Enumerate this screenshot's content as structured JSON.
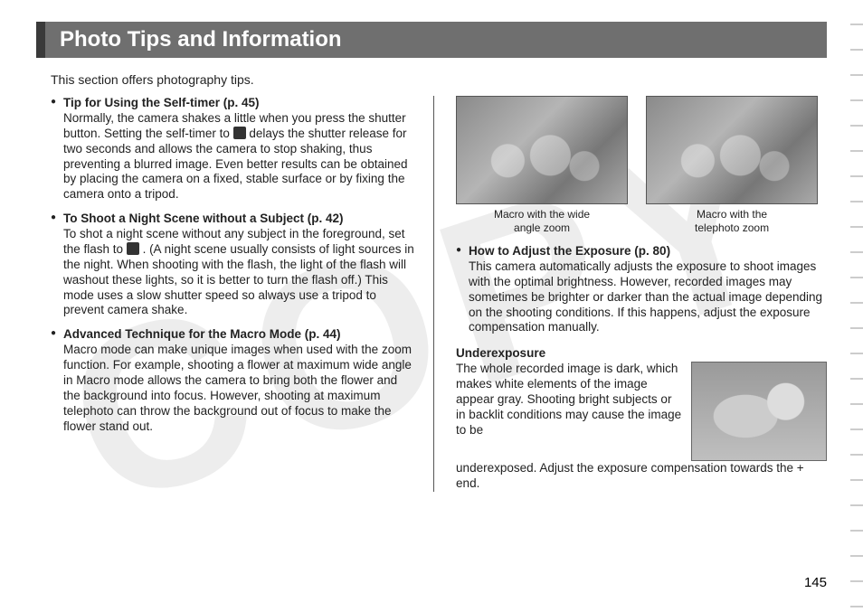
{
  "watermark_text": "COPY",
  "title": "Photo Tips and Information",
  "intro": "This section offers photography tips.",
  "left_tips": [
    {
      "title": "Tip for Using the Self-timer (p. 45)",
      "body_before_icon": "Normally, the camera shakes a little when you press the shutter button.\nSetting the self-timer to ",
      "body_after_icon": " delays the shutter release for two seconds and allows the camera to stop shaking, thus preventing a blurred image. Even better results can be obtained by placing the camera on a fixed, stable surface or by fixing the camera onto a tripod.",
      "has_icon": true
    },
    {
      "title": "To Shoot a Night Scene without a Subject (p. 42)",
      "body_before_icon": "To shot a night scene without any subject in the foreground, set the flash to ",
      "body_after_icon": " .\n(A night scene usually consists of light sources in the night. When shooting with the flash, the light of the flash will washout these lights, so it is better to turn the flash off.)\nThis mode uses a slow shutter speed so always use a tripod to prevent camera shake.",
      "has_icon": true
    },
    {
      "title": "Advanced Technique for the Macro Mode (p. 44)",
      "body_before_icon": "Macro mode can make unique images when used with the zoom function. For example, shooting a flower at maximum wide angle in Macro mode allows the camera to bring both the flower and the background into focus. However, shooting at maximum telephoto can throw the background out of focus to make the flower stand out.",
      "body_after_icon": "",
      "has_icon": false
    }
  ],
  "macro_images": [
    {
      "caption_l1": "Macro with the wide",
      "caption_l2": "angle zoom"
    },
    {
      "caption_l1": "Macro with the",
      "caption_l2": "telephoto zoom"
    }
  ],
  "exposure_tip": {
    "title": "How to Adjust the Exposure (p. 80)",
    "body": "This camera automatically adjusts the exposure to shoot images with the optimal brightness. However, recorded images may sometimes be brighter or darker than the actual image depending on the shooting conditions. If this happens, adjust the exposure compensation manually."
  },
  "underexposure": {
    "heading": "Underexposure",
    "body_wrap": "The whole recorded image is dark, which makes white elements of the image appear gray. Shooting bright subjects or in backlit conditions may cause the image to be",
    "body_rest": "underexposed. Adjust the exposure compensation towards the + end."
  },
  "page_number": "145",
  "colors": {
    "title_bg": "#6f6f6f",
    "title_accent": "#3a3a3a",
    "text": "#222222"
  }
}
